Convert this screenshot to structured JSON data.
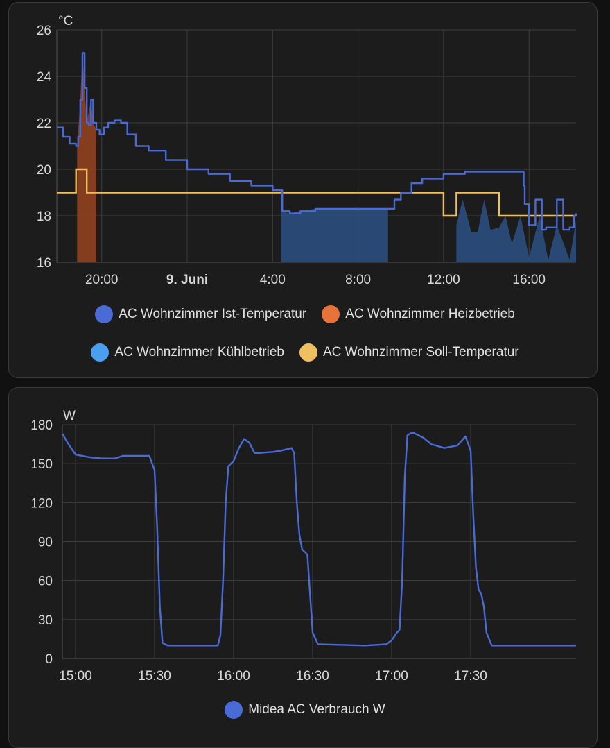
{
  "colors": {
    "ist": "#4a6bd6",
    "heiz": "#e8733a",
    "kuehl": "#4aa0f0",
    "soll": "#f0c060",
    "verbrauch": "#4a6bd6"
  },
  "temp_chart": {
    "unit": "°C",
    "y_ticks": [
      "26",
      "24",
      "22",
      "20",
      "18",
      "16"
    ],
    "x_ticks": [
      {
        "label": "20:00",
        "bold": false
      },
      {
        "label": "9. Juni",
        "bold": true
      },
      {
        "label": "4:00",
        "bold": false
      },
      {
        "label": "8:00",
        "bold": false
      },
      {
        "label": "12:00",
        "bold": false
      },
      {
        "label": "16:00",
        "bold": false
      }
    ],
    "legend": [
      {
        "label": "AC Wohnzimmer Ist-Temperatur",
        "color_key": "ist"
      },
      {
        "label": "AC Wohnzimmer Heizbetrieb",
        "color_key": "heiz"
      },
      {
        "label": "AC Wohnzimmer Kühlbetrieb",
        "color_key": "kuehl"
      },
      {
        "label": "AC Wohnzimmer Soll-Temperatur",
        "color_key": "soll"
      }
    ]
  },
  "power_chart": {
    "unit": "W",
    "y_ticks": [
      "180",
      "150",
      "120",
      "90",
      "60",
      "30",
      "0"
    ],
    "x_ticks": [
      "15:00",
      "15:30",
      "16:00",
      "16:30",
      "17:00",
      "17:30"
    ],
    "legend": [
      {
        "label": "Midea AC Verbrauch W",
        "color_key": "verbrauch"
      }
    ]
  },
  "chart_data": [
    {
      "type": "line",
      "x_unit": "hours since 18:00 (8. Juni)",
      "ylabel": "°C",
      "ylim": [
        16,
        26
      ],
      "xlim": [
        -0.1,
        24.2
      ],
      "grid": true,
      "legend_position": "bottom",
      "series": [
        {
          "name": "AC Wohnzimmer Ist-Temperatur",
          "kind": "line",
          "points": [
            [
              -0.1,
              21.8
            ],
            [
              0.2,
              21.4
            ],
            [
              0.5,
              21.1
            ],
            [
              0.8,
              21.0
            ],
            [
              0.9,
              21.4
            ],
            [
              1.0,
              23.0
            ],
            [
              1.1,
              25.0
            ],
            [
              1.2,
              23.5
            ],
            [
              1.3,
              22.0
            ],
            [
              1.4,
              21.9
            ],
            [
              1.5,
              23.0
            ],
            [
              1.6,
              22.0
            ],
            [
              1.75,
              21.7
            ],
            [
              1.9,
              21.5
            ],
            [
              2.1,
              21.8
            ],
            [
              2.3,
              22.0
            ],
            [
              2.6,
              22.1
            ],
            [
              2.9,
              22.0
            ],
            [
              3.2,
              21.5
            ],
            [
              3.6,
              21.0
            ],
            [
              4.2,
              20.8
            ],
            [
              5.0,
              20.4
            ],
            [
              6.0,
              20.0
            ],
            [
              7.0,
              19.8
            ],
            [
              8.0,
              19.5
            ],
            [
              9.0,
              19.3
            ],
            [
              10.0,
              19.1
            ],
            [
              10.35,
              19.1
            ],
            [
              10.45,
              18.2
            ],
            [
              10.8,
              18.1
            ],
            [
              11.3,
              18.2
            ],
            [
              12.0,
              18.3
            ],
            [
              13.0,
              18.3
            ],
            [
              14.0,
              18.3
            ],
            [
              15.0,
              18.3
            ],
            [
              15.4,
              18.3
            ],
            [
              15.7,
              18.7
            ],
            [
              16.0,
              19.0
            ],
            [
              16.5,
              19.4
            ],
            [
              17.0,
              19.6
            ],
            [
              18.0,
              19.8
            ],
            [
              19.0,
              19.9
            ],
            [
              20.0,
              19.9
            ],
            [
              21.0,
              19.9
            ],
            [
              21.6,
              19.9
            ],
            [
              21.75,
              19.3
            ],
            [
              21.8,
              18.5
            ],
            [
              22.0,
              17.6
            ],
            [
              22.3,
              18.7
            ],
            [
              22.6,
              17.4
            ],
            [
              22.8,
              17.5
            ],
            [
              23.0,
              17.5
            ],
            [
              23.3,
              18.7
            ],
            [
              23.6,
              17.4
            ],
            [
              23.9,
              17.5
            ],
            [
              24.1,
              18.0
            ],
            [
              24.2,
              18.1
            ]
          ]
        },
        {
          "name": "AC Wohnzimmer Soll-Temperatur",
          "kind": "step",
          "points": [
            [
              -0.1,
              19.0
            ],
            [
              0.8,
              19.0
            ],
            [
              0.8,
              20.0
            ],
            [
              1.2,
              20.0
            ],
            [
              1.3,
              19.0
            ],
            [
              18.0,
              19.0
            ],
            [
              18.0,
              18.0
            ],
            [
              18.6,
              18.0
            ],
            [
              18.6,
              19.0
            ],
            [
              20.6,
              19.0
            ],
            [
              20.6,
              18.0
            ],
            [
              24.2,
              18.0
            ]
          ]
        },
        {
          "name": "AC Wohnzimmer Heizbetrieb",
          "kind": "area",
          "points": [
            [
              0.85,
              16.0
            ],
            [
              0.85,
              21.0
            ],
            [
              1.0,
              23.0
            ],
            [
              1.1,
              25.0
            ],
            [
              1.2,
              23.5
            ],
            [
              1.3,
              22.0
            ],
            [
              1.5,
              23.0
            ],
            [
              1.6,
              22.0
            ],
            [
              1.75,
              21.7
            ],
            [
              1.75,
              16.0
            ]
          ]
        },
        {
          "name": "AC Wohnzimmer Kühlbetrieb",
          "kind": "area",
          "points": [
            [
              10.4,
              16.0
            ],
            [
              10.4,
              18.2
            ],
            [
              10.8,
              18.1
            ],
            [
              11.3,
              18.2
            ],
            [
              12.0,
              18.3
            ],
            [
              15.4,
              18.3
            ],
            [
              15.4,
              16.0
            ]
          ]
        },
        {
          "name": "AC Wohnzimmer Kühlbetrieb",
          "kind": "area",
          "points": [
            [
              18.6,
              16.0
            ],
            [
              18.6,
              17.6
            ],
            [
              18.9,
              18.7
            ],
            [
              19.3,
              17.3
            ],
            [
              19.6,
              17.3
            ],
            [
              19.9,
              18.7
            ],
            [
              20.2,
              17.4
            ],
            [
              20.6,
              17.5
            ],
            [
              20.9,
              18.0
            ],
            [
              21.2,
              16.8
            ],
            [
              21.6,
              18.0
            ],
            [
              22.0,
              16.2
            ],
            [
              22.5,
              18.0
            ],
            [
              22.9,
              16.1
            ],
            [
              23.3,
              17.6
            ],
            [
              23.9,
              16.1
            ],
            [
              24.2,
              17.8
            ],
            [
              24.2,
              16.0
            ]
          ]
        }
      ]
    },
    {
      "type": "line",
      "x_unit": "minutes since 14:30",
      "ylabel": "W",
      "ylim": [
        0,
        180
      ],
      "xlim": [
        25,
        220
      ],
      "grid": true,
      "legend_position": "bottom",
      "series": [
        {
          "name": "Midea AC Verbrauch W",
          "points": [
            [
              25,
              173
            ],
            [
              27,
              166
            ],
            [
              30,
              157
            ],
            [
              35,
              155
            ],
            [
              40,
              154
            ],
            [
              45,
              154
            ],
            [
              48,
              156
            ],
            [
              55,
              156
            ],
            [
              58,
              156
            ],
            [
              60,
              145
            ],
            [
              61,
              100
            ],
            [
              62,
              40
            ],
            [
              63,
              12
            ],
            [
              65,
              10
            ],
            [
              80,
              10
            ],
            [
              84,
              10
            ],
            [
              85,
              18
            ],
            [
              86,
              60
            ],
            [
              87,
              120
            ],
            [
              88,
              148
            ],
            [
              90,
              152
            ],
            [
              92,
              162
            ],
            [
              94,
              169
            ],
            [
              96,
              166
            ],
            [
              98,
              158
            ],
            [
              105,
              159
            ],
            [
              108,
              160
            ],
            [
              112,
              162
            ],
            [
              113,
              158
            ],
            [
              114,
              120
            ],
            [
              115,
              95
            ],
            [
              116,
              84
            ],
            [
              118,
              80
            ],
            [
              119,
              50
            ],
            [
              120,
              20
            ],
            [
              122,
              11
            ],
            [
              140,
              10
            ],
            [
              148,
              11
            ],
            [
              150,
              14
            ],
            [
              152,
              20
            ],
            [
              153,
              22
            ],
            [
              154,
              60
            ],
            [
              155,
              140
            ],
            [
              156,
              172
            ],
            [
              158,
              174
            ],
            [
              160,
              172
            ],
            [
              162,
              170
            ],
            [
              165,
              165
            ],
            [
              170,
              162
            ],
            [
              175,
              164
            ],
            [
              178,
              171
            ],
            [
              180,
              160
            ],
            [
              181,
              110
            ],
            [
              182,
              70
            ],
            [
              183,
              53
            ],
            [
              184,
              50
            ],
            [
              185,
              40
            ],
            [
              186,
              20
            ],
            [
              188,
              10
            ],
            [
              220,
              10
            ]
          ]
        }
      ]
    }
  ]
}
